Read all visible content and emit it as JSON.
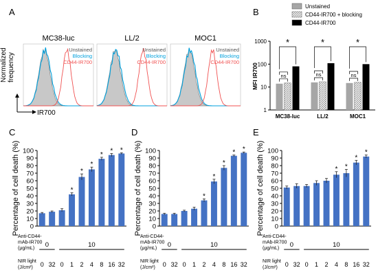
{
  "panel_letters": {
    "A": "A",
    "B": "B",
    "C": "C",
    "D": "D",
    "E": "E"
  },
  "colors": {
    "blocking": "#00a0dc",
    "cd44": "#f05050",
    "unstained_fill": "#c8c8c8",
    "bar_blue": "#4472c4",
    "mfi_gray": "#a6a6a6",
    "mfi_black": "#000000"
  },
  "panel_a": {
    "y_axis_label_lines": [
      "Normalized",
      "frequency"
    ],
    "x_axis_label": "IR700",
    "legend": {
      "unstained": "Unstained",
      "blocking": "Blocking",
      "cd44": "CD44-IR700"
    },
    "plots": [
      {
        "title": "MC38-luc"
      },
      {
        "title": "LL/2"
      },
      {
        "title": "MOC1"
      }
    ]
  },
  "chart_data": [
    {
      "panel": "B",
      "type": "bar",
      "ylabel": "MFI IR700",
      "yscale": "log",
      "ylim": [
        1,
        1000
      ],
      "yticks": [
        "1",
        "10",
        "100",
        "1000"
      ],
      "categories": [
        "MC38-luc",
        "LL/2",
        "MOC1"
      ],
      "series": [
        {
          "name": "Unstained",
          "values": [
            14,
            16,
            15
          ]
        },
        {
          "name": "CD44-IR700 + blocking",
          "values": [
            15,
            17,
            16
          ]
        },
        {
          "name": "CD44-IR700",
          "values": [
            80,
            110,
            100
          ]
        }
      ],
      "annotations": [
        "ns",
        "ns",
        "ns",
        "ns",
        "ns",
        "ns",
        "*",
        "*",
        "*"
      ]
    },
    {
      "panel": "C",
      "type": "bar",
      "ylabel": "Percentage of cell death (%)",
      "ylim": [
        0,
        100
      ],
      "yticks": [
        "0",
        "10",
        "20",
        "30",
        "40",
        "50",
        "60",
        "70",
        "80",
        "90",
        "100"
      ],
      "categories": [
        "0",
        "32",
        "0",
        "1",
        "2",
        "4",
        "8",
        "16",
        "32"
      ],
      "values": [
        17,
        19,
        21,
        42,
        65,
        75,
        89,
        94,
        96
      ],
      "errors": [
        1,
        1,
        2,
        2,
        4,
        3,
        2,
        2,
        1
      ],
      "significant": [
        false,
        false,
        false,
        true,
        true,
        true,
        true,
        true,
        true
      ]
    },
    {
      "panel": "D",
      "type": "bar",
      "ylabel": "Percentage of cell death (%)",
      "ylim": [
        0,
        100
      ],
      "yticks": [
        "0",
        "10",
        "20",
        "30",
        "40",
        "50",
        "60",
        "70",
        "80",
        "90",
        "100"
      ],
      "categories": [
        "0",
        "32",
        "0",
        "1",
        "2",
        "4",
        "8",
        "16",
        "32"
      ],
      "values": [
        16,
        16,
        20,
        23,
        34,
        59,
        77,
        93,
        97
      ],
      "errors": [
        1,
        1,
        1,
        2,
        2,
        3,
        3,
        1,
        1
      ],
      "significant": [
        false,
        false,
        false,
        false,
        true,
        true,
        true,
        true,
        true
      ]
    },
    {
      "panel": "E",
      "type": "bar",
      "ylabel": "Percentage of cell death (%)",
      "ylim": [
        0,
        100
      ],
      "yticks": [
        "0",
        "10",
        "20",
        "30",
        "40",
        "50",
        "60",
        "70",
        "80",
        "90",
        "100"
      ],
      "categories": [
        "0",
        "32",
        "0",
        "1",
        "2",
        "4",
        "8",
        "16",
        "32"
      ],
      "values": [
        51,
        53,
        53,
        57,
        60,
        68,
        70,
        84,
        92
      ],
      "errors": [
        2,
        3,
        2,
        3,
        3,
        4,
        5,
        3,
        2
      ],
      "significant": [
        false,
        false,
        false,
        false,
        false,
        true,
        true,
        true,
        true
      ]
    }
  ],
  "dose_labels": {
    "antibody_lines": [
      "Anti-CD44-",
      "mAb-IR700",
      "(μg/mL)"
    ],
    "antibody_groups": [
      "0",
      "10"
    ],
    "light_lines": [
      "NIR light",
      "(J/cm²)"
    ]
  }
}
